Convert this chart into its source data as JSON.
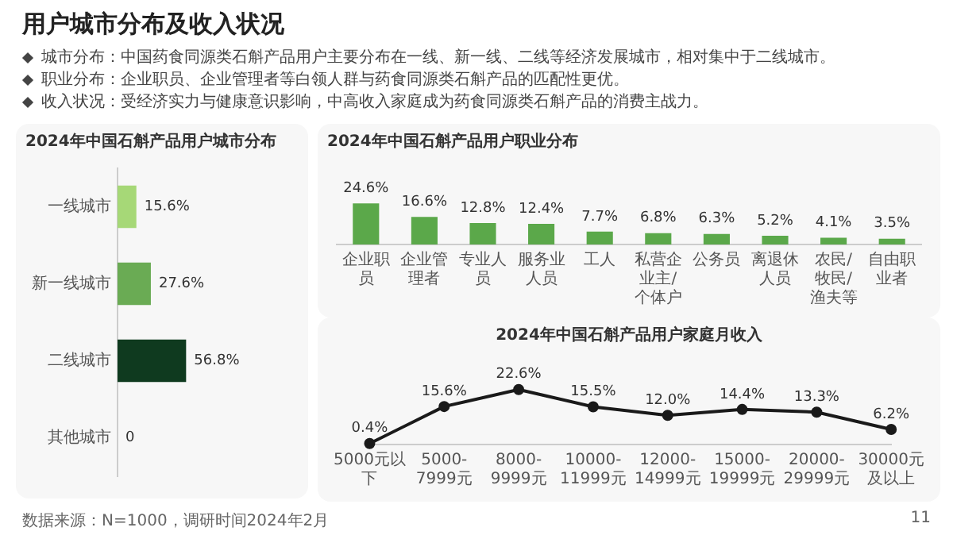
{
  "chart_data": [
    {
      "type": "bar",
      "orientation": "horizontal",
      "title": "2024年中国石斛产品用户城市分布",
      "categories": [
        "一线城市",
        "新一线城市",
        "二线城市",
        "其他城市"
      ],
      "values": [
        15.6,
        27.6,
        56.8,
        0
      ],
      "colors": [
        "#a6d877",
        "#6aab54",
        "#0f3a1f",
        "#6aab54"
      ],
      "value_labels": [
        "15.6%",
        "27.6%",
        "56.8%",
        "0"
      ],
      "annotations": [
        "用户城市分布及收入状况",
        "城市分布：中国药食同源类石斛产品用户主要分布在一线、新一线、二线等经济发展城市，相对集中于二线城市。",
        "职业分布：企业职员、企业管理者等白领人群与药食同源类石斛产品的匹配性更优。",
        "收入状况：受经济实力与健康意识影响，中高收入家庭成为药食同源类石斛产品的消费主战力。",
        "数据来源：N=1000，调研时间2024年2月",
        "11"
      ]
    },
    {
      "type": "bar",
      "title": "2024年中国石斛产品用户职业分布",
      "categories": [
        "企业职员",
        "企业管理者",
        "专业人员",
        "服务业人员",
        "工人",
        "私营企业主/个体户",
        "公务员",
        "离退休人员",
        "农民/牧民/渔夫等",
        "自由职业者"
      ],
      "values": [
        24.6,
        16.6,
        12.8,
        12.4,
        7.7,
        6.8,
        6.3,
        5.2,
        4.1,
        3.5
      ],
      "color": "#5ba84a",
      "value_labels": [
        "24.6%",
        "16.6%",
        "12.8%",
        "12.4%",
        "7.7%",
        "6.8%",
        "6.3%",
        "5.2%",
        "4.1%",
        "3.5%"
      ]
    },
    {
      "type": "line",
      "title": "2024年中国石斛产品用户家庭月收入",
      "categories": [
        "5000元以下",
        "5000-7999元",
        "8000-9999元",
        "10000-11999元",
        "12000-14999元",
        "15000-19999元",
        "20000-29999元",
        "30000元及以上"
      ],
      "values": [
        0.4,
        15.6,
        22.6,
        15.5,
        12.0,
        14.4,
        13.3,
        6.2
      ],
      "color": "#1a1a1a",
      "marker": "circle",
      "value_labels": [
        "0.4%",
        "15.6%",
        "22.6%",
        "15.5%",
        "12.0%",
        "14.4%",
        "13.3%",
        "6.2%"
      ]
    }
  ]
}
